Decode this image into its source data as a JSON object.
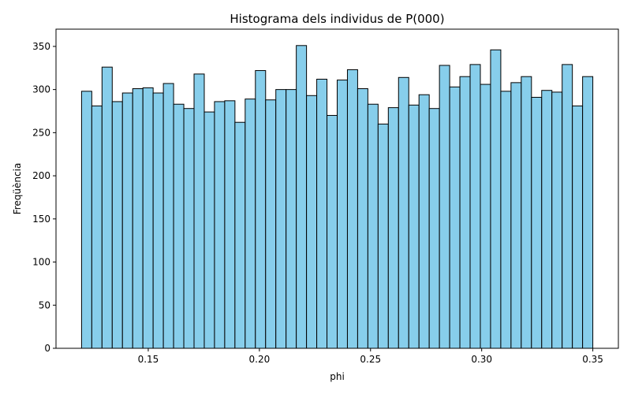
{
  "chart_data": {
    "type": "bar",
    "title": "Histograma dels individus de P(000)",
    "xlabel": "phi",
    "ylabel": "Freqüència",
    "bin_start": 0.12,
    "bin_width": 0.0046,
    "values": [
      298,
      281,
      326,
      286,
      296,
      301,
      302,
      296,
      307,
      283,
      278,
      318,
      274,
      286,
      287,
      262,
      289,
      322,
      288,
      300,
      300,
      351,
      293,
      312,
      270,
      311,
      323,
      301,
      283,
      260,
      279,
      314,
      282,
      294,
      278,
      328,
      303,
      315,
      329,
      306,
      346,
      298,
      308,
      315,
      291,
      299,
      297,
      329,
      281,
      315
    ],
    "xlim": [
      0.1085,
      0.3615
    ],
    "ylim": [
      0,
      370
    ],
    "x_ticks": [
      0.15,
      0.2,
      0.25,
      0.3,
      0.35
    ],
    "x_tick_labels": [
      "0.15",
      "0.20",
      "0.25",
      "0.30",
      "0.35"
    ],
    "y_ticks": [
      0,
      50,
      100,
      150,
      200,
      250,
      300,
      350
    ],
    "y_tick_labels": [
      "0",
      "50",
      "100",
      "150",
      "200",
      "250",
      "300",
      "350"
    ],
    "bar_color": "#87ceeb",
    "edge_color": "#000000",
    "grid": false,
    "legend": false
  }
}
